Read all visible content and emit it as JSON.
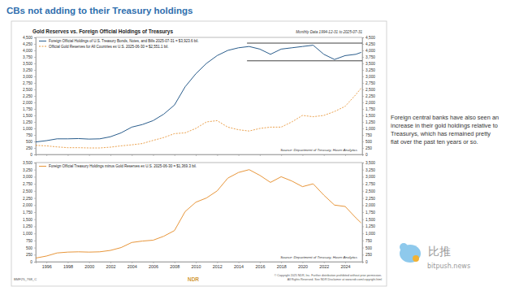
{
  "title": "CBs not adding to their Treasury holdings",
  "note": "Foreign central banks have also seen an increase in their gold holdings relative to Treasurys, which has remained pretty flat over the past ten years or so.",
  "footer": {
    "code": "BMF25_768_C",
    "copyright": "© Copyright 2025 NDR, Inc. Further distribution prohibited without prior permission.",
    "rights": "All Rights Reserved. See NDR Disclaimer at www.ndr.com/copyright.html",
    "logo": "NDR"
  },
  "watermark": {
    "name": "比推",
    "site": "bitpush.news"
  },
  "chart_data": [
    {
      "type": "line",
      "title": "Gold Reserves vs. Foreign Official Holdings of Treasurys",
      "subtitle": "Monthly Data 1994-12-31 to 2025-07-31",
      "source": "Source: Department of Treasury, Haver Analytics",
      "grid": false,
      "tick_labels": "y",
      "x": [
        1995,
        1996,
        1997,
        1998,
        1999,
        2000,
        2001,
        2002,
        2003,
        2004,
        2005,
        2006,
        2007,
        2008,
        2009,
        2010,
        2011,
        2012,
        2013,
        2014,
        2015,
        2016,
        2017,
        2018,
        2019,
        2020,
        2021,
        2022,
        2023,
        2024,
        2025,
        2025.5
      ],
      "xlim": [
        1995,
        2025.6
      ],
      "xticks": [
        1996,
        1998,
        2000,
        2002,
        2004,
        2006,
        2008,
        2010,
        2012,
        2014,
        2016,
        2018,
        2020,
        2022,
        2024
      ],
      "ylim": [
        0,
        4500
      ],
      "yticks": [
        0,
        250,
        500,
        750,
        {
          "value": 1000,
          "label": "1,000"
        },
        {
          "value": 1250,
          "label": "1,250"
        },
        {
          "value": 1500,
          "label": "1,500"
        },
        {
          "value": 1750,
          "label": "1,750"
        },
        {
          "value": 2000,
          "label": "2,000"
        },
        {
          "value": 2250,
          "label": "2,250"
        },
        {
          "value": 2500,
          "label": "2,500"
        },
        {
          "value": 2750,
          "label": "2,750"
        },
        {
          "value": 3000,
          "label": "3,000"
        },
        {
          "value": 3250,
          "label": "3,250"
        },
        {
          "value": 3500,
          "label": "3,500"
        },
        {
          "value": 3750,
          "label": "3,750"
        },
        {
          "value": 4000,
          "label": "4,000"
        },
        {
          "value": 4250,
          "label": "4,250"
        },
        {
          "value": 4500,
          "label": "4,500"
        }
      ],
      "series": [
        {
          "name": "Foreign Official Holdings of U.S. Treasury Bonds, Notes, and Bills 2025-07-31 = $3,923.6 bil.",
          "color": "#2a5d8c",
          "line_style": "solid",
          "values": [
            480,
            530,
            600,
            600,
            610,
            590,
            600,
            680,
            830,
            1050,
            1150,
            1300,
            1550,
            1900,
            2600,
            3100,
            3500,
            3800,
            4000,
            4100,
            4150,
            4050,
            3850,
            4050,
            4100,
            4150,
            4200,
            3850,
            3650,
            3800,
            3850,
            3923.6
          ]
        },
        {
          "name": "Official Gold Reserves for All Countries ex U.S. 2025-06-30 = $2,551.1 bil.",
          "color": "#e8963a",
          "line_style": "dashed",
          "values": [
            350,
            330,
            290,
            260,
            260,
            250,
            250,
            280,
            330,
            370,
            420,
            540,
            650,
            800,
            830,
            1000,
            1250,
            1300,
            1050,
            950,
            900,
            1000,
            1050,
            1050,
            1250,
            1500,
            1450,
            1500,
            1650,
            1850,
            2300,
            2551.1
          ]
        }
      ],
      "range_lines": [
        {
          "x": [
            2014.8,
            2025.6
          ],
          "y": 4280
        },
        {
          "x": [
            2014.8,
            2025.6
          ],
          "y": 3600
        }
      ]
    },
    {
      "type": "line",
      "source": "Source: Department of Treasury, Haver Analytics",
      "grid": false,
      "tick_labels": true,
      "x": [
        1995,
        1996,
        1997,
        1998,
        1999,
        2000,
        2001,
        2002,
        2003,
        2004,
        2005,
        2006,
        2007,
        2008,
        2009,
        2010,
        2011,
        2012,
        2013,
        2014,
        2015,
        2016,
        2017,
        2018,
        2019,
        2020,
        2021,
        2022,
        2023,
        2024,
        2025,
        2025.5
      ],
      "xlim": [
        1995,
        2025.6
      ],
      "xticks": [
        1996,
        1998,
        2000,
        2002,
        2004,
        2006,
        2008,
        2010,
        2012,
        2014,
        2016,
        2018,
        2020,
        2022,
        2024
      ],
      "ylim": [
        0,
        3500
      ],
      "yticks": [
        0,
        250,
        500,
        750,
        {
          "value": 1000,
          "label": "1,000"
        },
        {
          "value": 1250,
          "label": "1,250"
        },
        {
          "value": 1500,
          "label": "1,500"
        },
        {
          "value": 1750,
          "label": "1,750"
        },
        {
          "value": 2000,
          "label": "2,000"
        },
        {
          "value": 2250,
          "label": "2,250"
        },
        {
          "value": 2500,
          "label": "2,500"
        },
        {
          "value": 2750,
          "label": "2,750"
        },
        {
          "value": 3000,
          "label": "3,000"
        },
        {
          "value": 3250,
          "label": "3,250"
        },
        {
          "value": 3500,
          "label": "3,500"
        }
      ],
      "series": [
        {
          "name": "Foreign Official Treasury Holdings minus Gold Reserves ex U.S. 2025-06-30 = $1,369.3 bil.",
          "color": "#e8963a",
          "line_style": "solid",
          "values": [
            130,
            200,
            310,
            340,
            350,
            340,
            350,
            400,
            500,
            680,
            730,
            760,
            900,
            1100,
            1770,
            2100,
            2250,
            2500,
            2950,
            3150,
            3250,
            3050,
            2800,
            3000,
            2850,
            2650,
            2750,
            2350,
            2000,
            1950,
            1550,
            1369.3
          ]
        }
      ]
    }
  ]
}
